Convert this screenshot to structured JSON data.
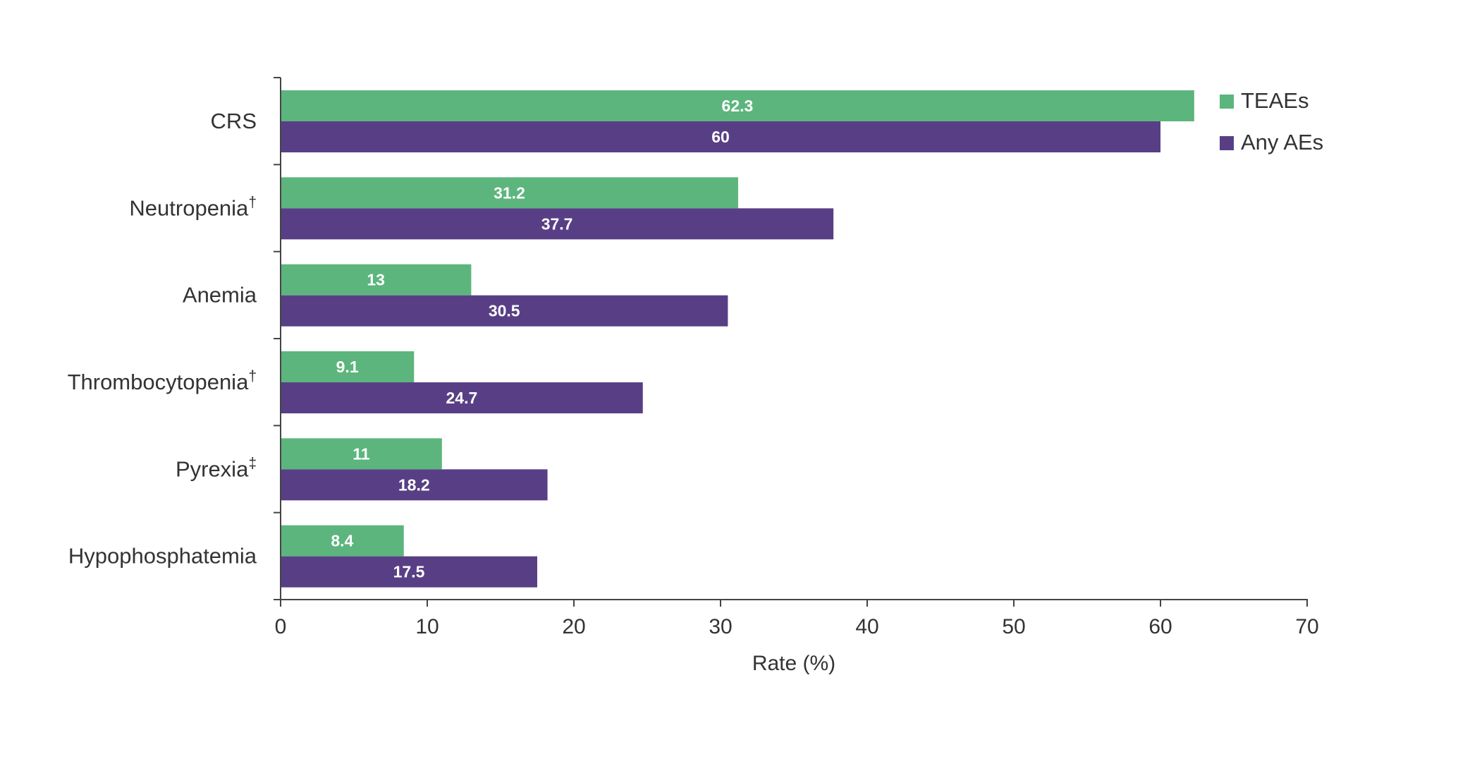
{
  "chart_data": {
    "type": "bar",
    "orientation": "horizontal",
    "categories": [
      "CRS",
      "Neutropenia",
      "Anemia",
      "Thrombocytopenia",
      "Pyrexia",
      "Hypophosphatemia"
    ],
    "category_marks": [
      "",
      "†",
      "",
      "†",
      "‡",
      ""
    ],
    "series": [
      {
        "name": "TEAEs",
        "values": [
          62.3,
          31.2,
          13,
          9.1,
          11,
          8.4
        ],
        "value_labels": [
          "62.3",
          "31.2",
          "13",
          "9.1",
          "11",
          "8.4"
        ],
        "color": "#5cb57d"
      },
      {
        "name": "Any AEs",
        "values": [
          60,
          37.7,
          30.5,
          24.7,
          18.2,
          17.5
        ],
        "value_labels": [
          "60",
          "37.7",
          "30.5",
          "24.7",
          "18.2",
          "17.5"
        ],
        "color": "#583f85"
      }
    ],
    "xlabel": "Rate (%)",
    "ylabel": "",
    "xlim": [
      0,
      70
    ],
    "xticks": [
      "0",
      "10",
      "20",
      "30",
      "40",
      "50",
      "60",
      "70"
    ],
    "grid": false,
    "legend_position": "top-right"
  }
}
